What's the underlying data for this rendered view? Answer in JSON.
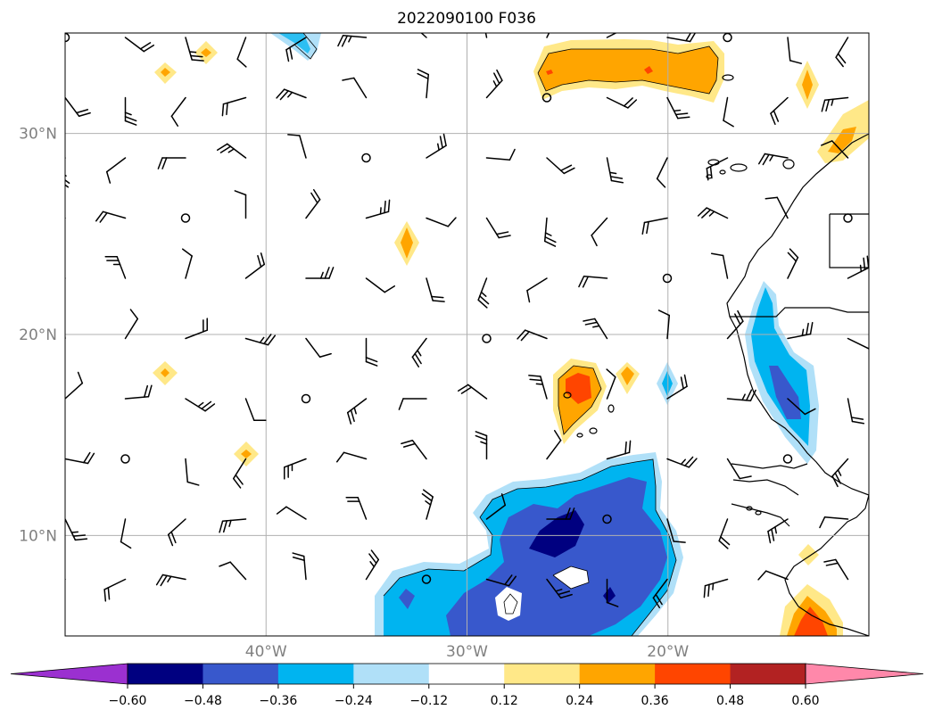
{
  "title": "2022090100 F036",
  "map": {
    "lon_range": [
      -50,
      -10
    ],
    "lat_range": [
      5,
      35
    ],
    "grid": true,
    "grid_color": "#b0b0b0"
  },
  "lat_ticks": [
    {
      "value": 30,
      "label": "30°N"
    },
    {
      "value": 20,
      "label": "20°N"
    },
    {
      "value": 10,
      "label": "10°N"
    }
  ],
  "lon_ticks": [
    {
      "value": -40,
      "label": "40°W"
    },
    {
      "value": -30,
      "label": "30°W"
    },
    {
      "value": -20,
      "label": "20°W"
    }
  ],
  "colorbar": {
    "extend": "both",
    "under_color": "#9b30d0",
    "over_color": "#ff88aa",
    "colors": [
      "#000080",
      "#3858cc",
      "#00b4f0",
      "#b0e0f8",
      "#ffffff",
      "#ffe888",
      "#ffa500",
      "#ff4500",
      "#b22222"
    ],
    "levels": [
      "−0.60",
      "−0.48",
      "−0.36",
      "−0.24",
      "−0.12",
      "0.12",
      "0.24",
      "0.36",
      "0.48",
      "0.60"
    ]
  }
}
